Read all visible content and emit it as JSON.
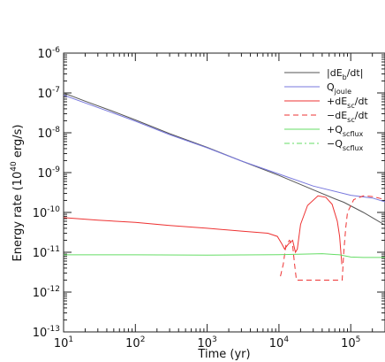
{
  "chart_data": {
    "type": "line",
    "title": "",
    "xlabel": "Time (yr)",
    "ylabel_html": [
      "Energy rate (10",
      "40",
      " erg/s)"
    ],
    "xscale": "log",
    "yscale": "log",
    "xlim": [
      10,
      300000
    ],
    "ylim": [
      1e-13,
      1e-06
    ],
    "x_ticks": [
      {
        "value": 10,
        "base": "10",
        "exp": "1"
      },
      {
        "value": 100,
        "base": "10",
        "exp": "2"
      },
      {
        "value": 1000,
        "base": "10",
        "exp": "3"
      },
      {
        "value": 10000,
        "base": "10",
        "exp": "4"
      },
      {
        "value": 100000,
        "base": "10",
        "exp": "5"
      }
    ],
    "y_ticks": [
      {
        "value": 1e-13,
        "base": "10",
        "exp": "-13"
      },
      {
        "value": 1e-12,
        "base": "10",
        "exp": "-12"
      },
      {
        "value": 1e-11,
        "base": "10",
        "exp": "-11"
      },
      {
        "value": 1e-10,
        "base": "10",
        "exp": "-10"
      },
      {
        "value": 1e-09,
        "base": "10",
        "exp": "-9"
      },
      {
        "value": 1e-08,
        "base": "10",
        "exp": "-8"
      },
      {
        "value": 1e-07,
        "base": "10",
        "exp": "-7"
      },
      {
        "value": 1e-06,
        "base": "10",
        "exp": "-6"
      }
    ],
    "legend_position": "top-right",
    "series": [
      {
        "name": "|dE_b/dt|",
        "legend_parts": [
          [
            "|dE",
            "n"
          ],
          [
            "b",
            "sub"
          ],
          [
            "/dt|",
            "n"
          ]
        ],
        "color": "#555555",
        "dash": "solid",
        "points": [
          [
            10,
            1e-07
          ],
          [
            20,
            6.2e-08
          ],
          [
            50,
            3.4e-08
          ],
          [
            100,
            2.1e-08
          ],
          [
            300,
            9.5e-09
          ],
          [
            1000,
            4.3e-09
          ],
          [
            3000,
            1.95e-09
          ],
          [
            10000,
            8.5e-10
          ],
          [
            30000,
            3.7e-10
          ],
          [
            60000,
            2.2e-10
          ],
          [
            80000,
            1.8e-10
          ],
          [
            150000,
            1e-10
          ],
          [
            300000,
            4.8e-11
          ]
        ]
      },
      {
        "name": "Q_joule",
        "legend_parts": [
          [
            "Q",
            "n"
          ],
          [
            "joule",
            "sub"
          ]
        ],
        "color": "#7777dd",
        "dash": "solid",
        "points": [
          [
            10,
            8.8e-08
          ],
          [
            20,
            5.6e-08
          ],
          [
            50,
            3.1e-08
          ],
          [
            100,
            1.95e-08
          ],
          [
            300,
            9e-09
          ],
          [
            1000,
            4.2e-09
          ],
          [
            3000,
            1.95e-09
          ],
          [
            10000,
            9.2e-10
          ],
          [
            30000,
            4.6e-10
          ],
          [
            100000,
            2.7e-10
          ],
          [
            200000,
            2.3e-10
          ],
          [
            300000,
            1.85e-10
          ]
        ]
      },
      {
        "name": "+dE_sc/dt",
        "legend_parts": [
          [
            "+dE",
            "n"
          ],
          [
            "sc",
            "sub"
          ],
          [
            "/dt",
            "n"
          ]
        ],
        "color": "#ee3333",
        "dash": "solid",
        "points": [
          [
            10,
            7.4e-11
          ],
          [
            30,
            6.4e-11
          ],
          [
            100,
            5.6e-11
          ],
          [
            300,
            4.7e-11
          ],
          [
            1000,
            4e-11
          ],
          [
            3000,
            3.4e-11
          ],
          [
            7000,
            3e-11
          ],
          [
            9500,
            2.5e-11
          ],
          [
            11000,
            1.6e-11
          ],
          [
            12000,
            1.2e-11
          ],
          [
            13500,
            1.6e-11
          ],
          [
            15500,
            2e-11
          ],
          [
            17000,
            1e-11
          ],
          [
            18000,
            1.2e-11
          ],
          [
            20000,
            5e-11
          ],
          [
            25000,
            1.5e-10
          ],
          [
            35000,
            2.6e-10
          ],
          [
            45000,
            2.4e-10
          ],
          [
            55000,
            1.6e-10
          ],
          [
            65000,
            6e-11
          ],
          [
            70000,
            2.5e-11
          ],
          [
            75000,
            5e-12
          ]
        ]
      },
      {
        "name": "-dE_sc/dt",
        "legend_parts": [
          [
            "−dE",
            "n"
          ],
          [
            "sc",
            "sub"
          ],
          [
            "/dt",
            "n"
          ]
        ],
        "color": "#ee3333",
        "dash": "dashed",
        "points": [
          [
            10500,
            2.5e-12
          ],
          [
            11500,
            5e-12
          ],
          [
            12500,
            1.5e-11
          ],
          [
            14000,
            2e-11
          ],
          [
            15500,
            1.5e-11
          ],
          [
            16500,
            5e-12
          ],
          [
            17500,
            2e-12
          ],
          [
            76000,
            2e-12
          ],
          [
            80000,
            1e-11
          ],
          [
            85000,
            4e-11
          ],
          [
            90000,
            1e-10
          ],
          [
            110000,
            2.1e-10
          ],
          [
            150000,
            2.6e-10
          ],
          [
            200000,
            2.5e-10
          ],
          [
            300000,
            2.1e-10
          ]
        ]
      },
      {
        "name": "+Q_scflux",
        "legend_parts": [
          [
            "+Q",
            "n"
          ],
          [
            "scflux",
            "sub"
          ]
        ],
        "color": "#66dd66",
        "dash": "solid",
        "points": [
          [
            10,
            8.6e-12
          ],
          [
            100,
            8.6e-12
          ],
          [
            1000,
            8.5e-12
          ],
          [
            10000,
            8.7e-12
          ],
          [
            40000,
            9.2e-12
          ],
          [
            70000,
            8.6e-12
          ],
          [
            100000,
            7.6e-12
          ],
          [
            150000,
            7.4e-12
          ],
          [
            300000,
            7.4e-12
          ]
        ]
      },
      {
        "name": "-Q_scflux",
        "legend_parts": [
          [
            "−Q",
            "n"
          ],
          [
            "scflux",
            "sub"
          ]
        ],
        "color": "#66dd66",
        "dash": "dashdot",
        "points": []
      }
    ]
  }
}
